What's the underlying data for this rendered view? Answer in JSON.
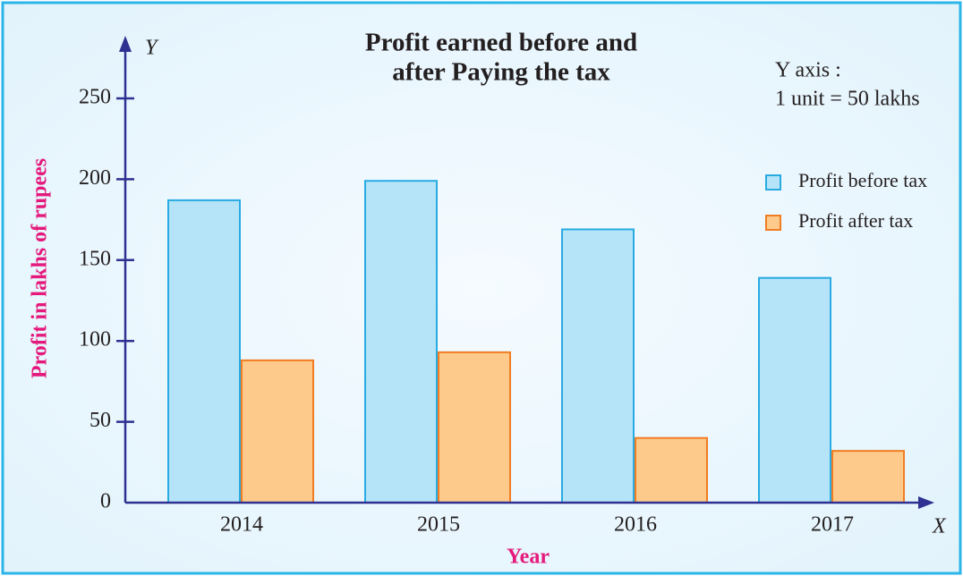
{
  "chart_data": {
    "type": "bar",
    "title": [
      "Profit earned before and",
      "after Paying the tax"
    ],
    "annotations": [
      "Y axis :",
      "1 unit = 50 lakhs"
    ],
    "y_symbol": "Y",
    "x_symbol": "X",
    "ylabel": "Profit in lakhs of rupees",
    "xlabel": "Year",
    "categories": [
      "2014",
      "2015",
      "2016",
      "2017"
    ],
    "series": [
      {
        "name": "Profit before tax",
        "color": "#b5e4f8",
        "stroke": "#29abe2",
        "values": [
          187,
          199,
          169,
          139
        ]
      },
      {
        "name": "Profit after tax",
        "color": "#fdca8c",
        "stroke": "#f07d22",
        "values": [
          88,
          93,
          40,
          32
        ]
      }
    ],
    "ylim": [
      0,
      250
    ],
    "yticks": [
      0,
      50,
      100,
      150,
      200,
      250
    ]
  }
}
